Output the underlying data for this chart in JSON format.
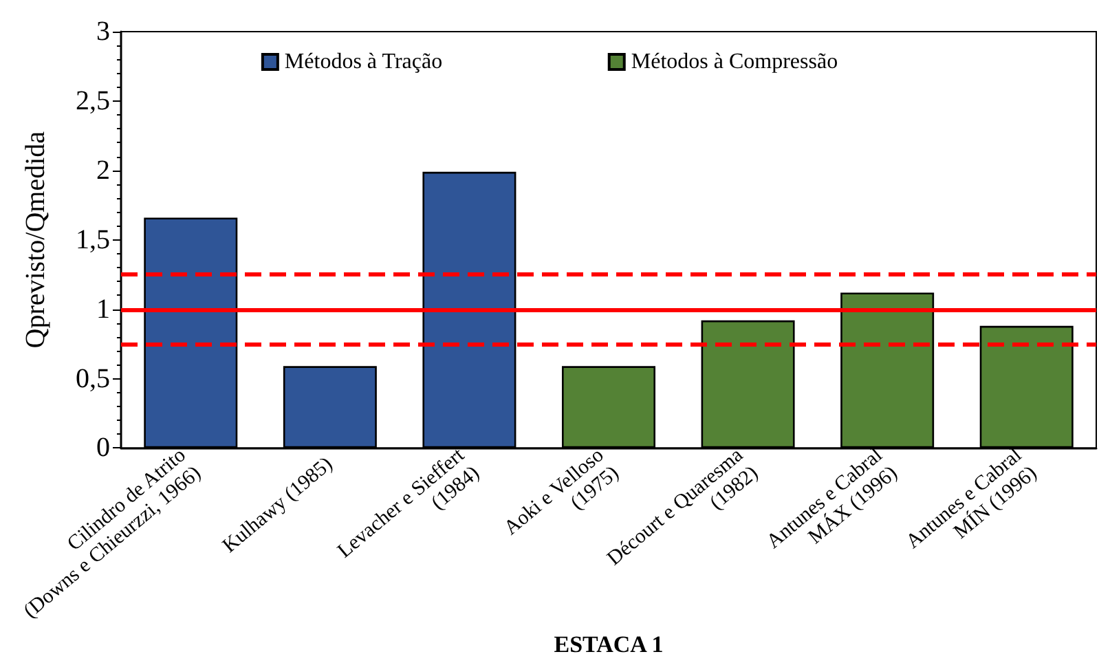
{
  "chart_data": {
    "type": "bar",
    "xlabel": "ESTACA 1",
    "ylabel": "Qprevisto/Qmedida",
    "categories": [
      "Cilindro de Atrito\n(Downs e Chieurzzi, 1966)",
      "Kulhawy (1985)",
      "Levacher e Sieffert\n(1984)",
      "Aoki e Velloso\n(1975)",
      "Décourt e Quaresma\n(1982)",
      "Antunes e Cabral\nMÁX (1996)",
      "Antunes e Cabral\nMÍN (1996)"
    ],
    "series": [
      {
        "name": "Métodos à Tração",
        "color": "#2f5597",
        "values": [
          1.66,
          0.59,
          1.99,
          null,
          null,
          null,
          null
        ]
      },
      {
        "name": "Métodos à Compressão",
        "color": "#548235",
        "values": [
          null,
          null,
          null,
          0.59,
          0.92,
          1.12,
          0.88
        ]
      }
    ],
    "ylim": [
      0,
      3
    ],
    "yticks": [
      0,
      {
        "value": 0.5,
        "label": "0,5"
      },
      1,
      {
        "value": 1.5,
        "label": "1,5"
      },
      2,
      {
        "value": 2.5,
        "label": "2,5"
      },
      3
    ],
    "ref_lines": [
      {
        "axis": "y",
        "value": 1,
        "color": "#ff0000",
        "line_style": "solid"
      },
      {
        "axis": "y",
        "value": 1.25,
        "color": "#ff0000",
        "line_style": "dashed"
      },
      {
        "axis": "y",
        "value": 0.75,
        "color": "#ff0000",
        "line_style": "dashed"
      }
    ],
    "grid": false,
    "legend": "top"
  }
}
